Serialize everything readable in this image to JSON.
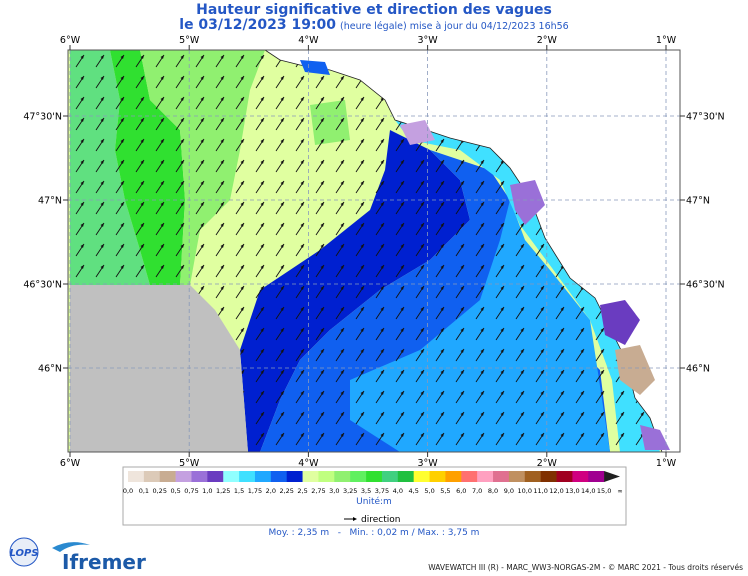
{
  "title": "Hauteur significative et direction des vagues",
  "date": "le 03/12/2023 19:00",
  "update": "(heure légale) mise à jour du 04/12/2023 16h56",
  "map": {
    "lon_labels": [
      "6°W",
      "5°W",
      "4°W",
      "3°W",
      "2°W",
      "1°W"
    ],
    "lat_labels": [
      "47°30'N",
      "47°N",
      "46°30'N",
      "46°N"
    ]
  },
  "legend": {
    "labels": [
      "0,0",
      "0,1",
      "0,25",
      "0,5",
      "0,75",
      "1,0",
      "1,25",
      "1,5",
      "1,75",
      "2,0",
      "2,25",
      "2,5",
      "2,75",
      "3,0",
      "3,25",
      "3,5",
      "3,75",
      "4,0",
      "4,5",
      "5,0",
      "5,5",
      "6,0",
      "7,0",
      "8,0",
      "9,0",
      "10,0",
      "11,0",
      "12,0",
      "13,0",
      "14,0",
      "15,0",
      "∞"
    ],
    "colors": [
      "#efe5dc",
      "#dccab8",
      "#c8ac92",
      "#c4a0e0",
      "#9a70d8",
      "#6a3cc0",
      "#90ffff",
      "#40e0ff",
      "#20a8ff",
      "#1060f0",
      "#0020d0",
      "#e0ffa0",
      "#c0ff80",
      "#90f070",
      "#60f060",
      "#30e030",
      "#40d080",
      "#20c040",
      "#ffff30",
      "#ffd000",
      "#ffa000",
      "#ff7070",
      "#ffa0c0",
      "#e07090",
      "#c09060",
      "#a06020",
      "#803000",
      "#a00020",
      "#d00080",
      "#a00090",
      "#202020"
    ],
    "unit": "Unité:m",
    "direction": "direction"
  },
  "stats": "Moy. : 2,35 m   -   Min. : 0,02 m / Max. : 3,75 m",
  "logos": [
    "LOPS",
    "Ifremer"
  ],
  "footer": "WAVEWATCH III (R) - MARC_WW3-NORGAS-2M - © MARC 2021 - Tous droits réservés"
}
